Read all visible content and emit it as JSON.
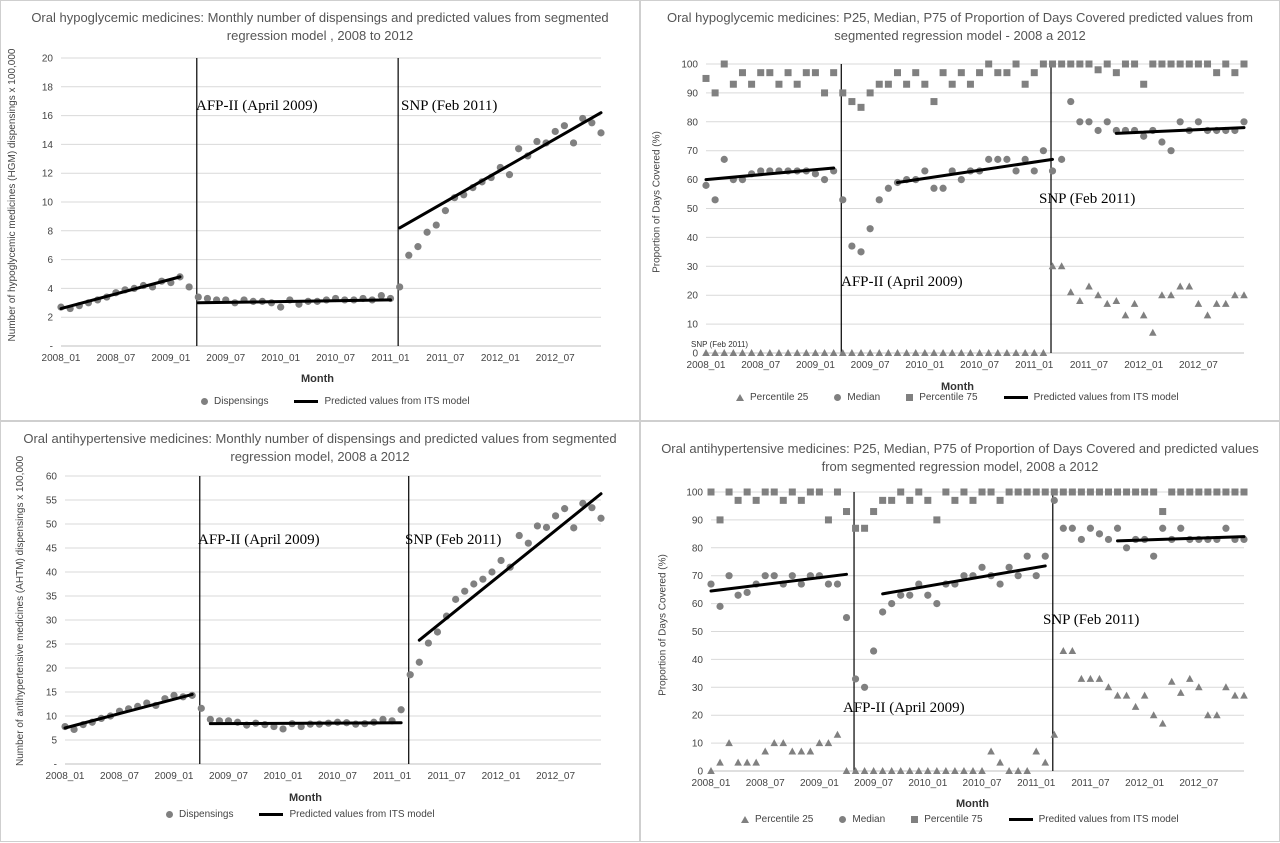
{
  "chart_data": [
    {
      "type": "scatter",
      "title": "Oral hypoglycemic medicines: Monthly number of dispensings and predicted values from segmented regression model , 2008 to 2012",
      "xlabel": "Month",
      "ylabel": "Number of hypoglycemic medicines (HGM) dispensings x 100,000",
      "ylim": [
        0,
        20
      ],
      "yticks": [
        "-",
        "2",
        "4",
        "6",
        "8",
        "10",
        "12",
        "14",
        "16",
        "18",
        "20"
      ],
      "xticks": [
        "2008_01",
        "2008_07",
        "2009_01",
        "2009_07",
        "2010_01",
        "2010_07",
        "2011_01",
        "2011_07",
        "2012_01",
        "2012_07"
      ],
      "grid": true,
      "legend_position": "bottom",
      "series": [
        {
          "name": "Dispensings",
          "kind": "points",
          "marker": "circle",
          "values": [
            2.7,
            2.6,
            2.8,
            3.0,
            3.2,
            3.4,
            3.7,
            3.9,
            4.0,
            4.2,
            4.1,
            4.5,
            4.4,
            4.8,
            4.1,
            3.4,
            3.3,
            3.2,
            3.2,
            3.0,
            3.2,
            3.1,
            3.1,
            3.0,
            2.7,
            3.2,
            2.9,
            3.1,
            3.1,
            3.2,
            3.3,
            3.2,
            3.2,
            3.3,
            3.2,
            3.5,
            3.3,
            4.1,
            6.3,
            6.9,
            7.9,
            8.4,
            9.4,
            10.3,
            10.5,
            11.0,
            11.4,
            11.7,
            12.4,
            11.9,
            13.7,
            13.2,
            14.2,
            14.1,
            14.9,
            15.3,
            14.1,
            15.8,
            15.5,
            14.8
          ]
        },
        {
          "name": "Predicted values from ITS model",
          "kind": "segments",
          "segments": [
            {
              "x": [
                0,
                13
              ],
              "y": [
                2.6,
                4.8
              ]
            },
            {
              "x": [
                15,
                36
              ],
              "y": [
                3.0,
                3.2
              ]
            },
            {
              "x": [
                37,
                59
              ],
              "y": [
                8.2,
                16.2
              ]
            }
          ]
        }
      ],
      "annotations": [
        {
          "text": "AFP-II (April 2009)",
          "x": 15
        },
        {
          "text": "SNP (Feb 2011)",
          "x": 37
        }
      ]
    },
    {
      "type": "scatter",
      "title": "Oral hypoglycemic medicines: P25, Median, P75 of Proportion of Days Covered predicted values from segmented regression model - 2008 a 2012",
      "xlabel": "Month",
      "ylabel": "Proportion of Days Covered (%)",
      "ylim": [
        0,
        100
      ],
      "yticks": [
        "0",
        "10",
        "20",
        "30",
        "40",
        "50",
        "60",
        "70",
        "80",
        "90",
        "100"
      ],
      "xticks": [
        "2008_01",
        "2008_07",
        "2009_01",
        "2009_07",
        "2010_01",
        "2010_07",
        "2011_01",
        "2011_07",
        "2012_01",
        "2012_07"
      ],
      "grid": true,
      "legend_position": "bottom",
      "series": [
        {
          "name": "Percentile 25",
          "kind": "points",
          "marker": "triangle",
          "values": [
            0,
            0,
            0,
            0,
            0,
            0,
            0,
            0,
            0,
            0,
            0,
            0,
            0,
            0,
            0,
            0,
            0,
            0,
            0,
            0,
            0,
            0,
            0,
            0,
            0,
            0,
            0,
            0,
            0,
            0,
            0,
            0,
            0,
            0,
            0,
            0,
            0,
            0,
            30,
            30,
            21,
            18,
            23,
            20,
            17,
            18,
            13,
            17,
            13,
            7,
            20,
            20,
            23,
            23,
            17,
            13,
            17,
            17,
            20,
            20
          ]
        },
        {
          "name": "Median",
          "kind": "points",
          "marker": "circle",
          "values": [
            58,
            53,
            67,
            60,
            60,
            62,
            63,
            63,
            63,
            63,
            63,
            63,
            62,
            60,
            63,
            53,
            37,
            35,
            43,
            53,
            57,
            59,
            60,
            60,
            63,
            57,
            57,
            63,
            60,
            63,
            63,
            67,
            67,
            67,
            63,
            67,
            63,
            70,
            63,
            67,
            87,
            80,
            80,
            77,
            80,
            77,
            77,
            77,
            75,
            77,
            73,
            70,
            80,
            77,
            80,
            77,
            77,
            77,
            77,
            80
          ]
        },
        {
          "name": "Percentile 75",
          "kind": "points",
          "marker": "square",
          "values": [
            95,
            90,
            100,
            93,
            97,
            93,
            97,
            97,
            93,
            97,
            93,
            97,
            97,
            90,
            97,
            90,
            87,
            85,
            90,
            93,
            93,
            97,
            93,
            97,
            93,
            87,
            97,
            93,
            97,
            93,
            97,
            100,
            97,
            97,
            100,
            93,
            97,
            100,
            100,
            100,
            100,
            100,
            100,
            98,
            100,
            97,
            100,
            100,
            93,
            100,
            100,
            100,
            100,
            100,
            100,
            100,
            97,
            100,
            97,
            100
          ]
        },
        {
          "name": "Predicted values from ITS model",
          "kind": "segments",
          "segments": [
            {
              "x": [
                0,
                14
              ],
              "y": [
                60,
                64
              ]
            },
            {
              "x": [
                21,
                38
              ],
              "y": [
                59,
                67
              ]
            },
            {
              "x": [
                45,
                59
              ],
              "y": [
                76,
                78
              ]
            }
          ]
        }
      ],
      "annotations": [
        {
          "text": "AFP-II (April 2009)",
          "x": 15
        },
        {
          "text": "SNP (Feb 2011)",
          "x": 38
        },
        {
          "text": "SNP (Feb 2011)",
          "x": 0
        }
      ]
    },
    {
      "type": "scatter",
      "title": "Oral antihypertensive medicines: Monthly number of dispensings and predicted values from segmented regression model, 2008 a 2012",
      "xlabel": "Month",
      "ylabel": "Number of antihypertensive medicines (AHTM) dispensings x 100,000",
      "ylim": [
        0,
        60
      ],
      "yticks": [
        "-",
        "5",
        "10",
        "15",
        "20",
        "25",
        "30",
        "35",
        "40",
        "45",
        "50",
        "55",
        "60"
      ],
      "xticks": [
        "2008_01",
        "2008_07",
        "2009_01",
        "2009_07",
        "2010_01",
        "2010_07",
        "2011_01",
        "2011_07",
        "2012_01",
        "2012_07"
      ],
      "grid": true,
      "legend_position": "bottom",
      "series": [
        {
          "name": "Dispensings",
          "kind": "points",
          "marker": "circle",
          "values": [
            7.8,
            7.2,
            8.2,
            8.7,
            9.5,
            10.0,
            11.0,
            11.5,
            12.0,
            12.7,
            12.2,
            13.6,
            14.3,
            14.0,
            14.3,
            11.6,
            9.3,
            9.0,
            9.0,
            8.7,
            8.1,
            8.5,
            8.2,
            7.8,
            7.3,
            8.4,
            7.8,
            8.3,
            8.3,
            8.5,
            8.7,
            8.6,
            8.3,
            8.4,
            8.7,
            9.3,
            9.0,
            11.3,
            18.6,
            21.2,
            25.2,
            27.5,
            30.8,
            34.3,
            36.0,
            37.5,
            38.5,
            40.0,
            42.4,
            41.0,
            47.6,
            46.0,
            49.6,
            49.3,
            51.7,
            53.2,
            49.2,
            54.3,
            53.4,
            51.2
          ]
        },
        {
          "name": "Predicted values from ITS model",
          "kind": "segments",
          "segments": [
            {
              "x": [
                0,
                14
              ],
              "y": [
                7.5,
                14.5
              ]
            },
            {
              "x": [
                16,
                37
              ],
              "y": [
                8.4,
                8.6
              ]
            },
            {
              "x": [
                39,
                59
              ],
              "y": [
                25.8,
                56.3
              ]
            }
          ]
        }
      ],
      "annotations": [
        {
          "text": "AFP-II (April 2009)",
          "x": 15
        },
        {
          "text": "SNP (Feb 2011)",
          "x": 38
        }
      ]
    },
    {
      "type": "scatter",
      "title": "Oral antihypertensive medicines: P25, Median, P75 of Proportion of Days Covered and predicted values from segmented regression model, 2008 a 2012",
      "xlabel": "Month",
      "ylabel": "Proportion of Days Covered (%)",
      "ylim": [
        0,
        100
      ],
      "yticks": [
        "0",
        "10",
        "20",
        "30",
        "40",
        "50",
        "60",
        "70",
        "80",
        "90",
        "100"
      ],
      "xticks": [
        "2008_01",
        "2008_07",
        "2009_01",
        "2009_07",
        "2010_01",
        "2010_07",
        "2011_01",
        "2011_07",
        "2012_01",
        "2012_07"
      ],
      "grid": true,
      "legend_position": "bottom",
      "series": [
        {
          "name": "Percentile 25",
          "kind": "points",
          "marker": "triangle",
          "values": [
            0,
            3,
            10,
            3,
            3,
            3,
            7,
            10,
            10,
            7,
            7,
            7,
            10,
            10,
            13,
            0,
            0,
            0,
            0,
            0,
            0,
            0,
            0,
            0,
            0,
            0,
            0,
            0,
            0,
            0,
            0,
            7,
            3,
            0,
            0,
            0,
            7,
            3,
            13,
            43,
            43,
            33,
            33,
            33,
            30,
            27,
            27,
            23,
            27,
            20,
            17,
            32,
            28,
            33,
            30,
            20,
            20,
            30,
            27,
            27
          ]
        },
        {
          "name": "Median",
          "kind": "points",
          "marker": "circle",
          "values": [
            67,
            59,
            70,
            63,
            64,
            67,
            70,
            70,
            67,
            70,
            67,
            70,
            70,
            67,
            67,
            55,
            33,
            30,
            43,
            57,
            60,
            63,
            63,
            67,
            63,
            60,
            67,
            67,
            70,
            70,
            73,
            70,
            67,
            73,
            70,
            77,
            70,
            77,
            97,
            87,
            87,
            83,
            87,
            85,
            83,
            87,
            80,
            83,
            83,
            77,
            87,
            83,
            87,
            83,
            83,
            83,
            83,
            87,
            83,
            83
          ]
        },
        {
          "name": "Percentile 75",
          "kind": "points",
          "marker": "square",
          "values": [
            100,
            90,
            100,
            97,
            100,
            97,
            100,
            100,
            97,
            100,
            97,
            100,
            100,
            90,
            100,
            93,
            87,
            87,
            93,
            97,
            97,
            100,
            97,
            100,
            97,
            90,
            100,
            97,
            100,
            97,
            100,
            100,
            97,
            100,
            100,
            100,
            100,
            100,
            100,
            100,
            100,
            100,
            100,
            100,
            100,
            100,
            100,
            100,
            100,
            100,
            93,
            100,
            100,
            100,
            100,
            100,
            100,
            100,
            100,
            100
          ]
        },
        {
          "name": "Predited values from ITS model",
          "kind": "segments",
          "segments": [
            {
              "x": [
                0,
                15
              ],
              "y": [
                64.5,
                70.5
              ]
            },
            {
              "x": [
                19,
                37
              ],
              "y": [
                63.5,
                73.5
              ]
            },
            {
              "x": [
                45,
                59
              ],
              "y": [
                82.5,
                84
              ]
            }
          ]
        }
      ],
      "annotations": [
        {
          "text": "AFP-II (April 2009)",
          "x": 16
        },
        {
          "text": "SNP (Feb 2011)",
          "x": 38
        }
      ]
    }
  ]
}
